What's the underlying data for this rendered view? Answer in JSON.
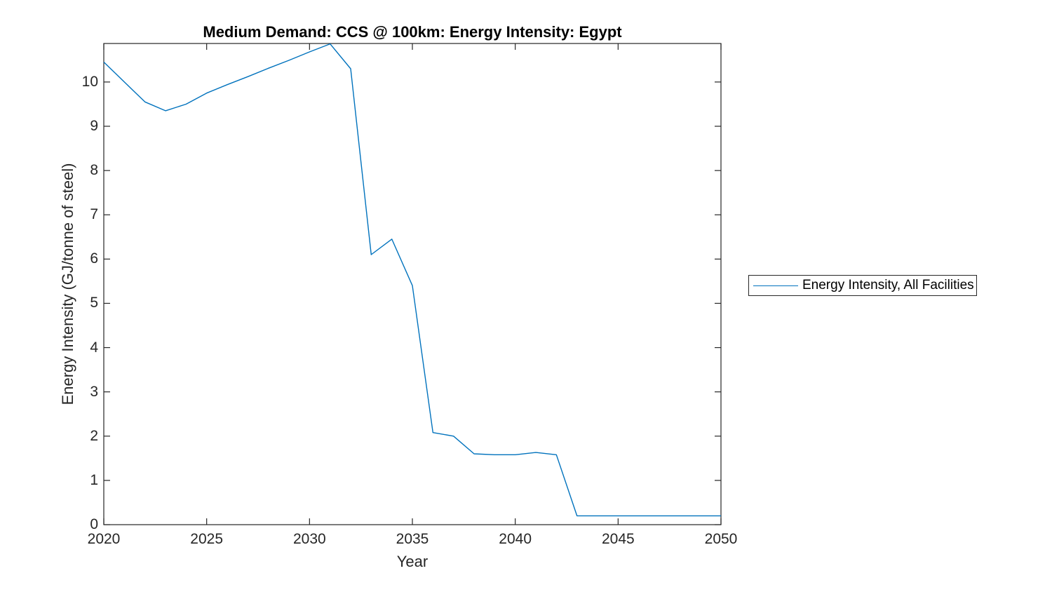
{
  "window": {
    "background": "#ffffff"
  },
  "chart_data": {
    "type": "line",
    "title": "Medium Demand: CCS @ 100km: Energy Intensity: Egypt",
    "xlabel": "Year",
    "ylabel": "Energy Intensity (GJ/tonne of steel)",
    "xlim": [
      2020,
      2050
    ],
    "ylim": [
      0,
      10.87
    ],
    "xticks": [
      2020,
      2025,
      2030,
      2035,
      2040,
      2045,
      2050
    ],
    "yticks": [
      0,
      1,
      2,
      3,
      4,
      5,
      6,
      7,
      8,
      9,
      10
    ],
    "grid": false,
    "box": true,
    "tick_direction": "in",
    "axis_color": "#262626",
    "text_color": "#262626",
    "title_color": "#000000",
    "legend": {
      "position": "outside-right",
      "entries": [
        "Energy Intensity, All Facilities"
      ]
    },
    "series": [
      {
        "name": "Energy Intensity, All Facilities",
        "color": "#0072BD",
        "x": [
          2020,
          2021,
          2022,
          2023,
          2024,
          2025,
          2026,
          2027,
          2028,
          2029,
          2030,
          2031,
          2032,
          2033,
          2034,
          2035,
          2036,
          2037,
          2038,
          2039,
          2040,
          2041,
          2042,
          2043,
          2044,
          2045,
          2046,
          2047,
          2048,
          2049,
          2050
        ],
        "y": [
          10.45,
          10.0,
          9.55,
          9.35,
          9.5,
          9.75,
          9.94,
          10.12,
          10.31,
          10.49,
          10.68,
          10.86,
          10.3,
          6.1,
          6.45,
          5.4,
          2.08,
          2.0,
          1.6,
          1.58,
          1.58,
          1.63,
          1.58,
          0.2,
          0.2,
          0.2,
          0.2,
          0.2,
          0.2,
          0.2,
          0.2
        ]
      }
    ]
  }
}
